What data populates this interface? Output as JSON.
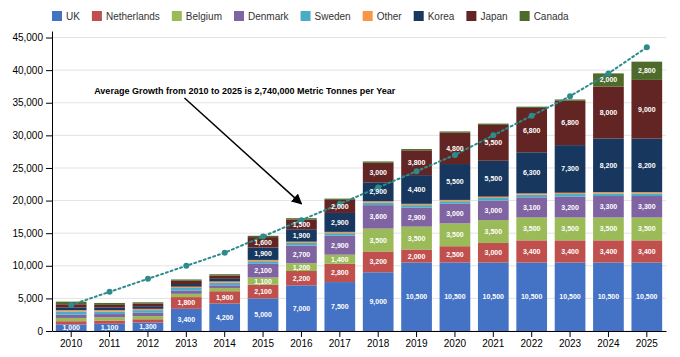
{
  "chart_data": {
    "type": "bar",
    "stacked": true,
    "grid": true,
    "legend": "top-left",
    "data_labels": true,
    "categories": [
      "2010",
      "2011",
      "2012",
      "2013",
      "2014",
      "2015",
      "2016",
      "2017",
      "2018",
      "2019",
      "2020",
      "2021",
      "2022",
      "2023",
      "2024",
      "2025"
    ],
    "series": [
      {
        "name": "UK",
        "color": "#4472C4",
        "values": [
          1000,
          1100,
          1300,
          3400,
          4200,
          5000,
          7000,
          7500,
          9000,
          10500,
          10500,
          10500,
          10500,
          10500,
          10500,
          10500
        ],
        "value_labels": [
          "1,000",
          "1,100",
          "1,300",
          "3,400",
          "4,200",
          "5,000",
          "7,000",
          "7,500",
          "9,000",
          "10,500",
          "10,500",
          "10,500",
          "10,500",
          "10,500",
          "10,500",
          "10,500"
        ]
      },
      {
        "name": "Netherlands",
        "color": "#C0504D",
        "values": [
          500,
          500,
          500,
          1800,
          1900,
          2100,
          2200,
          2800,
          3200,
          2000,
          2500,
          3000,
          3400,
          3400,
          3400,
          3400
        ],
        "value_labels": [
          null,
          null,
          null,
          "1,800",
          "1,900",
          "2,100",
          "2,200",
          "2,800",
          "3,200",
          "2,000",
          "2,500",
          "3,000",
          "3,400",
          "3,400",
          "3,400",
          "3,400"
        ]
      },
      {
        "name": "Belgium",
        "color": "#9BBB59",
        "values": [
          500,
          500,
          500,
          500,
          500,
          1100,
          1200,
          1400,
          3500,
          3500,
          3500,
          3500,
          3500,
          3500,
          3500,
          3500
        ],
        "value_labels": [
          null,
          null,
          null,
          null,
          null,
          "1,100",
          "1,200",
          "1,400",
          "3,500",
          "3,500",
          "3,500",
          "3,500",
          "3,500",
          "3,500",
          "3,500",
          "3,500"
        ]
      },
      {
        "name": "Denmark",
        "color": "#8064A2",
        "values": [
          500,
          500,
          500,
          500,
          400,
          2100,
          2700,
          2900,
          3600,
          2900,
          3000,
          3000,
          3100,
          3200,
          3300,
          3300
        ],
        "value_labels": [
          null,
          null,
          null,
          null,
          null,
          "2,100",
          "2,700",
          "2,900",
          "3,600",
          "2,900",
          "3,000",
          "3,000",
          "3,100",
          "3,200",
          "3,300",
          "3,300"
        ]
      },
      {
        "name": "Sweden",
        "color": "#4BACC6",
        "values": [
          500,
          400,
          400,
          400,
          400,
          400,
          400,
          400,
          400,
          400,
          400,
          400,
          400,
          400,
          400,
          400
        ],
        "value_labels": [
          null,
          null,
          null,
          null,
          null,
          null,
          null,
          null,
          null,
          null,
          null,
          null,
          null,
          null,
          null,
          null
        ]
      },
      {
        "name": "Other",
        "color": "#F79646",
        "values": [
          200,
          200,
          200,
          200,
          200,
          200,
          200,
          200,
          200,
          200,
          200,
          200,
          200,
          200,
          200,
          200
        ],
        "value_labels": [
          null,
          null,
          null,
          null,
          null,
          null,
          null,
          null,
          null,
          null,
          null,
          null,
          null,
          null,
          null,
          null
        ]
      },
      {
        "name": "Korea",
        "color": "#17375E",
        "values": [
          400,
          400,
          400,
          400,
          400,
          1900,
          1900,
          2900,
          2900,
          4400,
          5500,
          5500,
          6300,
          7300,
          8200,
          8200
        ],
        "value_labels": [
          null,
          null,
          null,
          null,
          null,
          "1,900",
          "1,900",
          "2,900",
          "2,900",
          "4,400",
          "5,500",
          "5,500",
          "6,300",
          "7,300",
          "8,200",
          "8,200"
        ]
      },
      {
        "name": "Japan",
        "color": "#632523",
        "values": [
          500,
          400,
          400,
          500,
          500,
          1600,
          1500,
          2000,
          3000,
          3800,
          4800,
          5500,
          6800,
          6800,
          8000,
          9000
        ],
        "value_labels": [
          null,
          null,
          null,
          null,
          null,
          "1,600",
          "1,500",
          "2,000",
          "3,000",
          "3,800",
          "4,800",
          "5,500",
          "6,800",
          "6,800",
          "8,000",
          "9,000"
        ]
      },
      {
        "name": "Canada",
        "color": "#4E6B2B",
        "values": [
          400,
          300,
          200,
          200,
          200,
          200,
          200,
          200,
          200,
          200,
          200,
          200,
          200,
          200,
          2000,
          2800
        ],
        "value_labels": [
          null,
          null,
          null,
          null,
          null,
          null,
          null,
          null,
          null,
          null,
          null,
          null,
          null,
          null,
          "2,000",
          "2,800"
        ]
      },
      {
        "type": "line",
        "color": "#2E8B8B",
        "marker": "circle",
        "line_style": "dotted",
        "values": [
          4000,
          6000,
          8000,
          10000,
          12000,
          14500,
          17000,
          19500,
          22000,
          24500,
          27000,
          30000,
          33000,
          36000,
          39500,
          43500
        ]
      }
    ],
    "ylim": [
      0,
      46000
    ],
    "yticks": [
      0,
      {
        "value": 5000,
        "label": "5,000"
      },
      {
        "value": 10000,
        "label": "10,000"
      },
      {
        "value": 15000,
        "label": "15,000"
      },
      {
        "value": 20000,
        "label": "20,000"
      },
      {
        "value": 25000,
        "label": "25,000"
      },
      {
        "value": 30000,
        "label": "30,000"
      },
      {
        "value": 35000,
        "label": "35,000"
      },
      {
        "value": 40000,
        "label": "40,000"
      },
      {
        "value": 45000,
        "label": "45,000"
      }
    ],
    "annotations": [
      {
        "text": "Average Growth from 2010 to 2025 is 2,740,000 Metric Tonnes per Year",
        "x": "2016",
        "y": 19500
      }
    ]
  }
}
